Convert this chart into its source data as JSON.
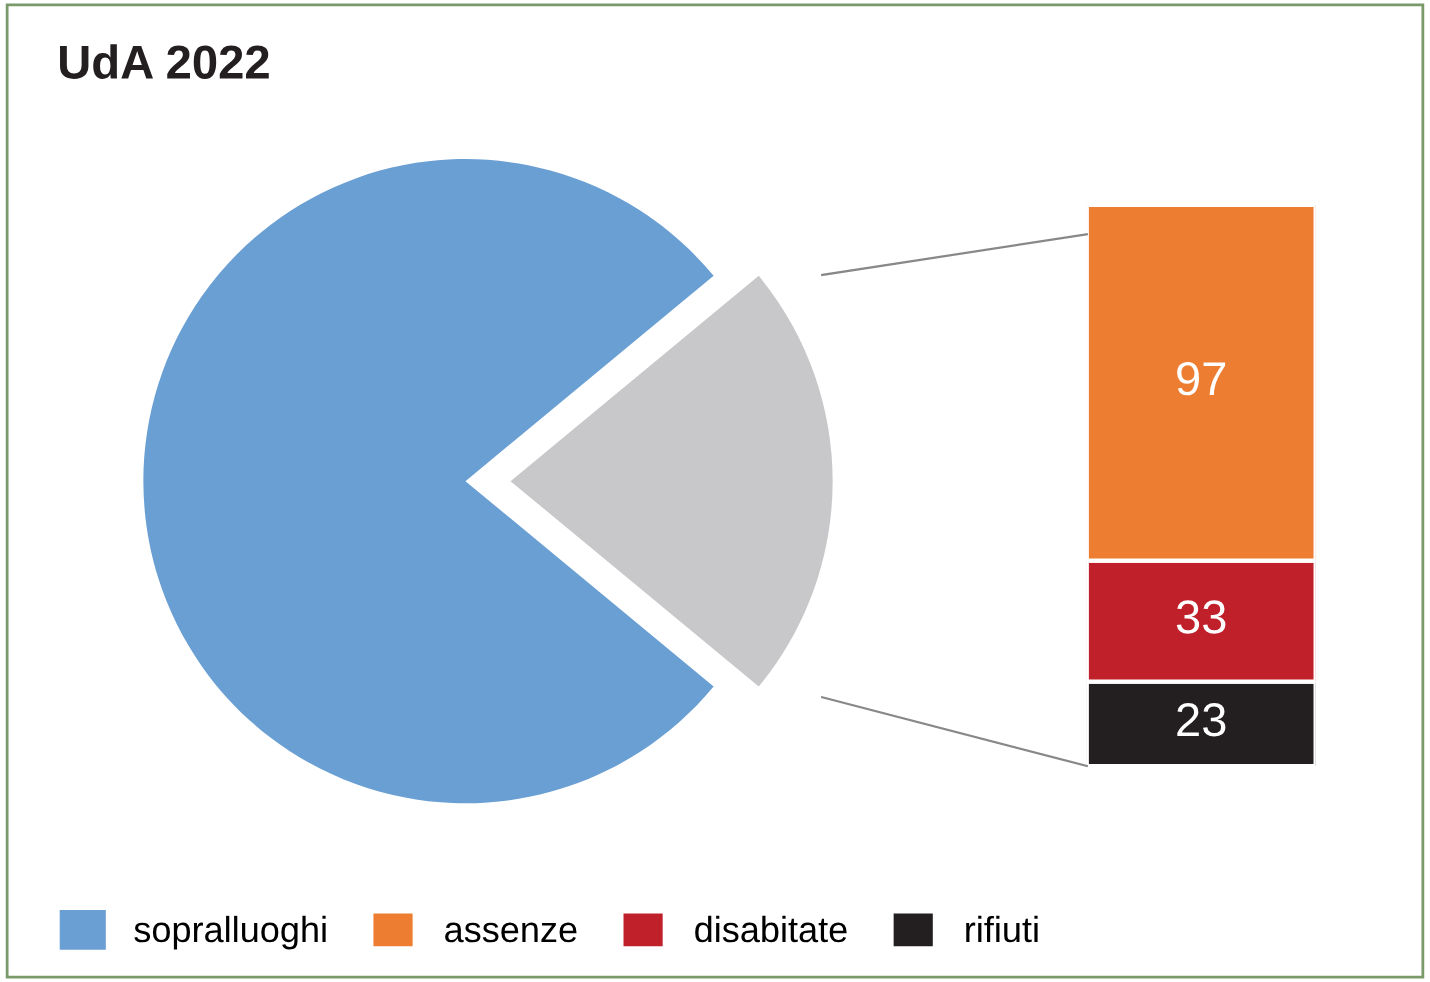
{
  "chart_data": [
    {
      "type": "pie",
      "title": "UdA 2022",
      "categories": [
        "sopralluoghi",
        null
      ],
      "values": [
        78,
        22
      ],
      "colors": [
        "#6a9fd4",
        "#c8c8ca"
      ],
      "legend": "bottom"
    },
    {
      "type": "bar",
      "stacked": true,
      "categories": [
        null
      ],
      "data_labels": true,
      "legend": "bottom",
      "series": [
        {
          "name": "rifiuti",
          "color": "#231f20",
          "values": [
            23
          ]
        },
        {
          "name": "disabitate",
          "color": "#c0202a",
          "values": [
            33
          ]
        },
        {
          "name": "assenze",
          "color": "#ed7d31",
          "values": [
            97
          ]
        }
      ]
    }
  ]
}
